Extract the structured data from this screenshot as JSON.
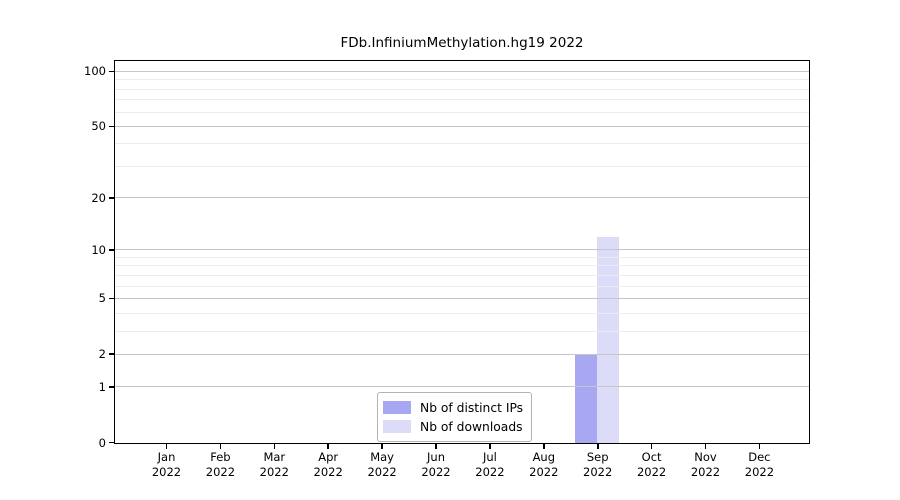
{
  "chart_data": {
    "type": "bar",
    "title": "FDb.InfiniumMethylation.hg19 2022",
    "x": {
      "months": [
        "Jan",
        "Feb",
        "Mar",
        "Apr",
        "May",
        "Jun",
        "Jul",
        "Aug",
        "Sep",
        "Oct",
        "Nov",
        "Dec"
      ],
      "year": "2022"
    },
    "y_axis": {
      "scale": "log1p",
      "major_ticks": [
        0,
        1,
        2,
        5,
        10,
        20,
        50,
        100
      ],
      "minor_ticks": [
        3,
        4,
        6,
        7,
        8,
        9,
        30,
        40,
        60,
        70,
        80,
        90
      ],
      "ylim": [
        0,
        113.3
      ],
      "grid": true
    },
    "series": [
      {
        "name": "Nb of distinct IPs",
        "color": "#a8a8f2",
        "values": [
          0,
          0,
          0,
          0,
          0,
          0,
          0,
          0,
          2,
          0,
          0,
          0
        ]
      },
      {
        "name": "Nb of downloads",
        "color": "#dcdcf9",
        "values": [
          0,
          0,
          0,
          0,
          0,
          0,
          0,
          0,
          12,
          0,
          0,
          0
        ]
      }
    ],
    "legend": {
      "position": "bottom-center"
    }
  },
  "colors": {
    "major_grid": "#c6c6c6",
    "minor_grid": "#ededed",
    "spine": "#000000",
    "legend_border": "#b3b3b3",
    "background": "#ffffff"
  }
}
